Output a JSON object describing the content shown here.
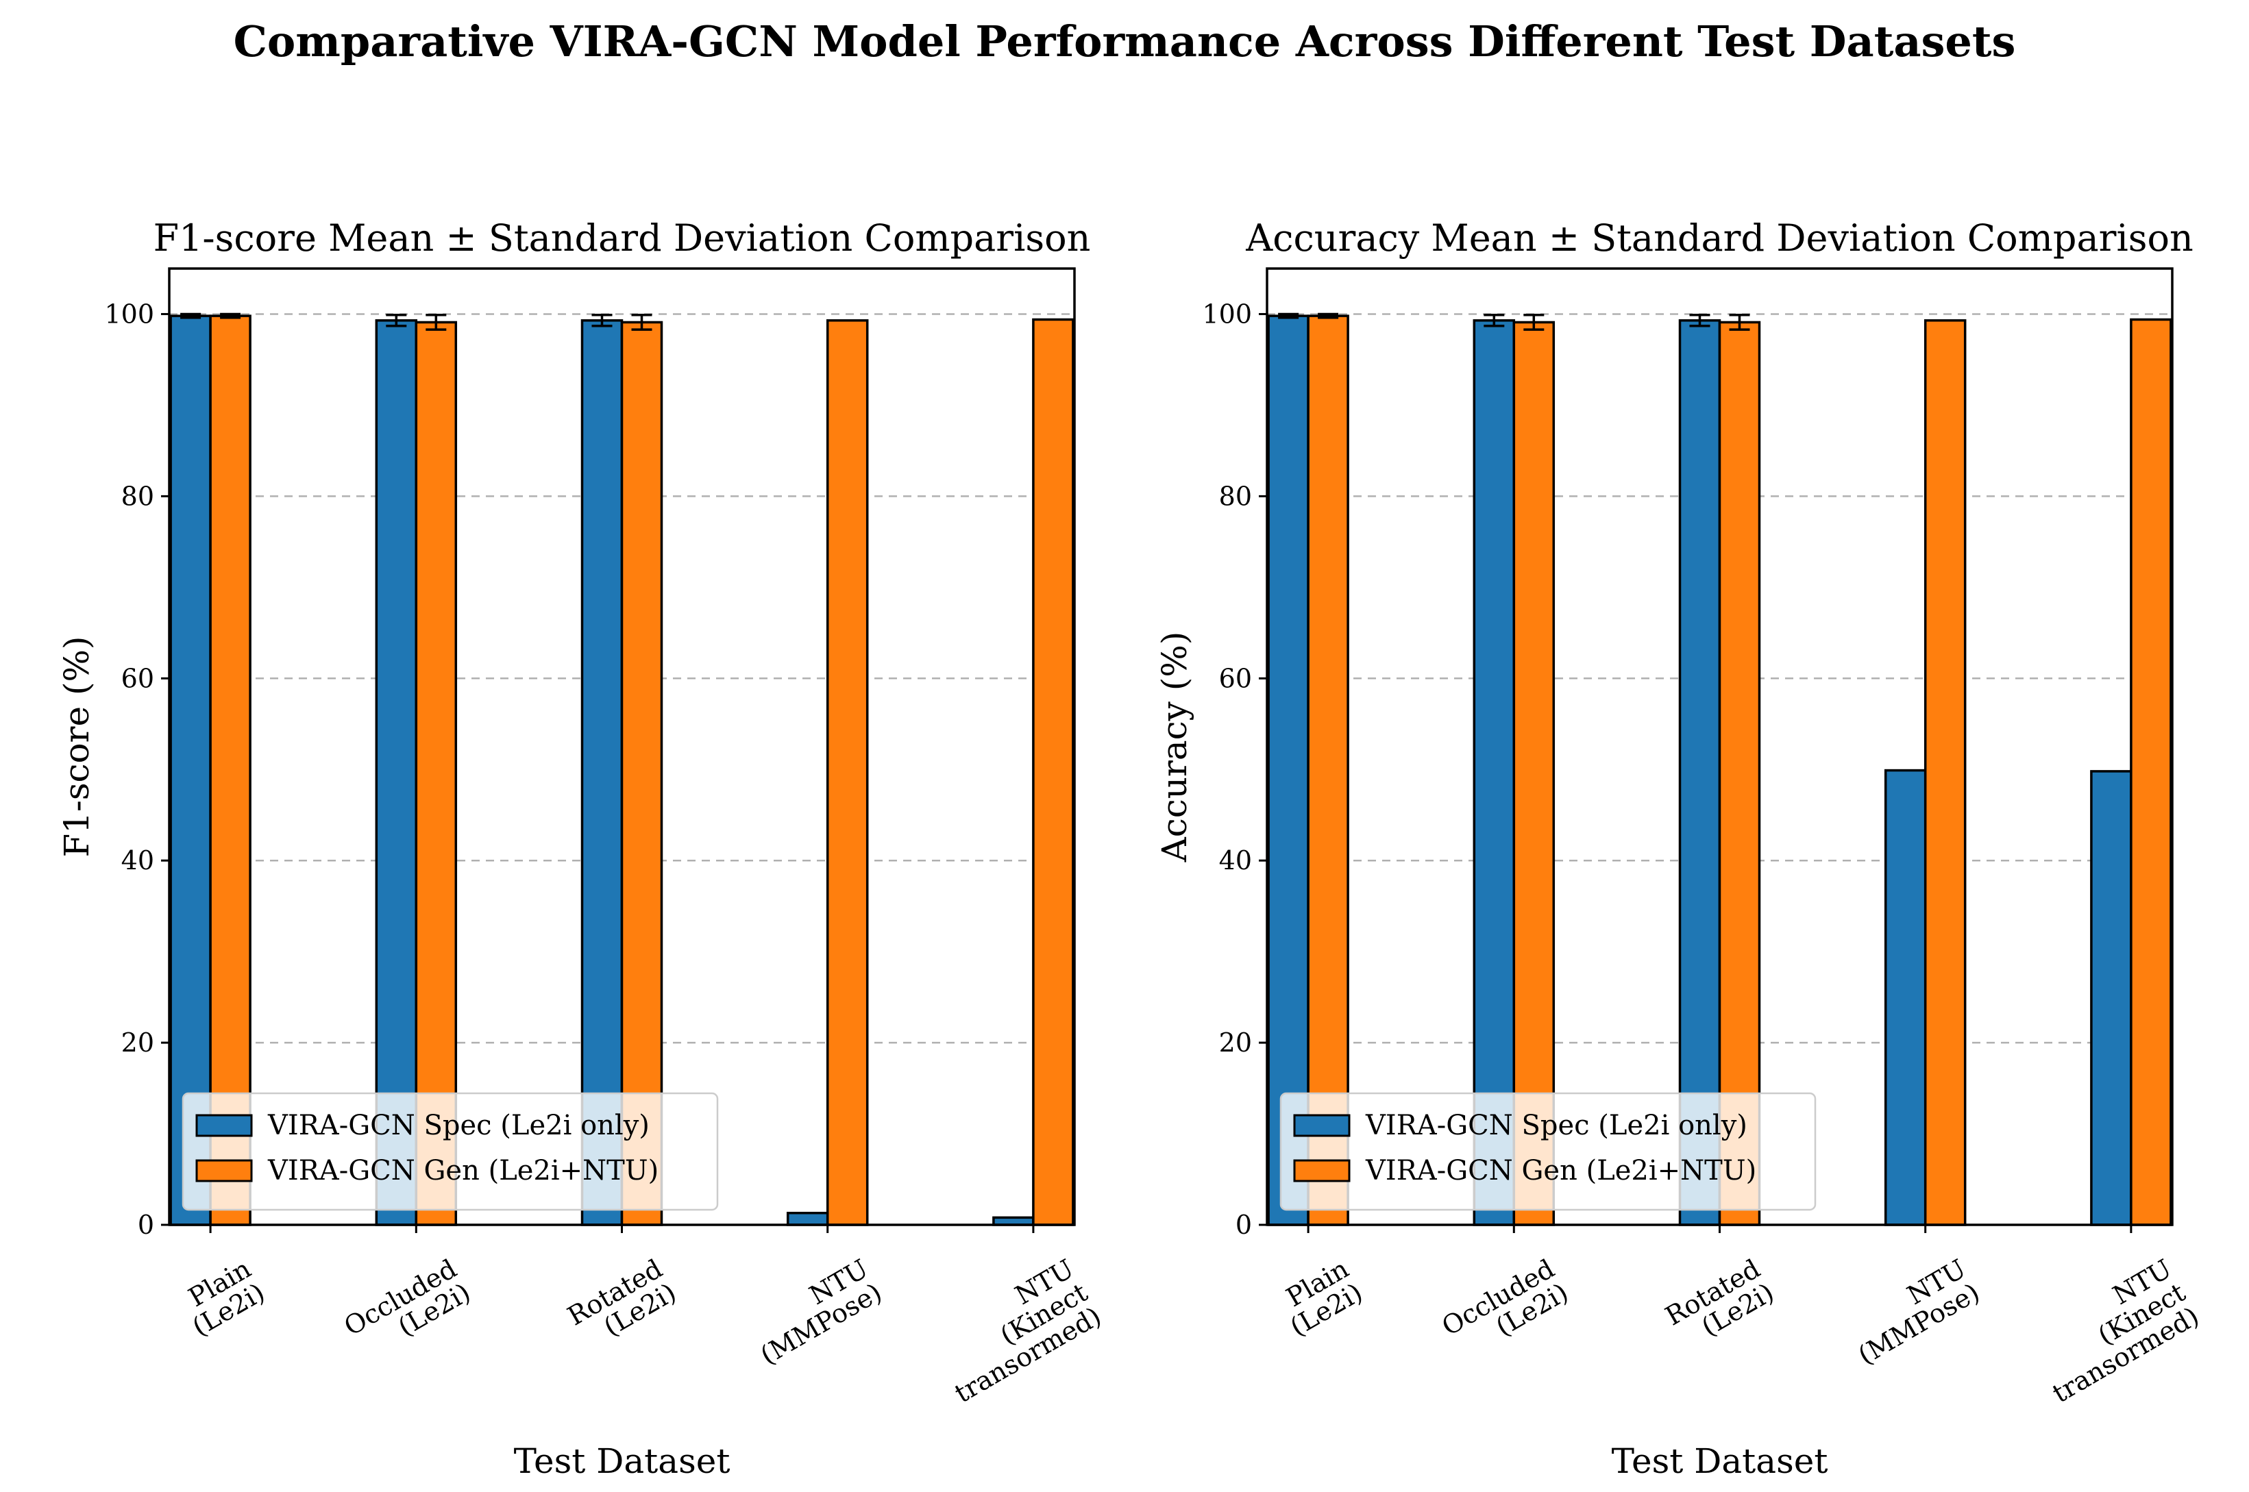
{
  "figure": {
    "suptitle": "Comparative VIRA-GCN Model Performance Across Different Test Datasets"
  },
  "colors": {
    "spec": "#1f77b4",
    "gen": "#ff7f0e",
    "grid": "#b0b0b0",
    "edge": "#000000"
  },
  "chart_data": [
    {
      "type": "bar",
      "title": "F1-score Mean ± Standard Deviation Comparison",
      "xlabel": "Test Dataset",
      "ylabel": "F1-score (%)",
      "ylim": [
        0,
        105
      ],
      "yticks": [
        0,
        20,
        40,
        60,
        80,
        100
      ],
      "ytick_labels": [
        "0",
        "20",
        "40",
        "60",
        "80",
        "100"
      ],
      "grid": "y dashed",
      "legend_position": "lower-left",
      "categories": [
        [
          "Plain",
          "(Le2i)"
        ],
        [
          "Occluded",
          "(Le2i)"
        ],
        [
          "Rotated",
          "(Le2i)"
        ],
        [
          "NTU",
          "(MMPose)"
        ],
        [
          "NTU",
          "(Kinect",
          "transormed)"
        ]
      ],
      "series": [
        {
          "name": "VIRA-GCN Spec (Le2i only)",
          "color_key": "spec",
          "values": [
            99.8,
            99.3,
            99.3,
            1.3,
            0.8
          ],
          "errors": [
            0.2,
            0.6,
            0.6,
            0,
            0
          ]
        },
        {
          "name": "VIRA-GCN Gen (Le2i+NTU)",
          "color_key": "gen",
          "values": [
            99.8,
            99.1,
            99.1,
            99.3,
            99.4
          ],
          "errors": [
            0.2,
            0.8,
            0.8,
            0,
            0
          ]
        }
      ]
    },
    {
      "type": "bar",
      "title": "Accuracy Mean ± Standard Deviation Comparison",
      "xlabel": "Test Dataset",
      "ylabel": "Accuracy (%)",
      "ylim": [
        0,
        105
      ],
      "yticks": [
        0,
        20,
        40,
        60,
        80,
        100
      ],
      "ytick_labels": [
        "0",
        "20",
        "40",
        "60",
        "80",
        "100"
      ],
      "grid": "y dashed",
      "legend_position": "lower-left",
      "categories": [
        [
          "Plain",
          "(Le2i)"
        ],
        [
          "Occluded",
          "(Le2i)"
        ],
        [
          "Rotated",
          "(Le2i)"
        ],
        [
          "NTU",
          "(MMPose)"
        ],
        [
          "NTU",
          "(Kinect",
          "transormed)"
        ]
      ],
      "series": [
        {
          "name": "VIRA-GCN Spec (Le2i only)",
          "color_key": "spec",
          "values": [
            99.8,
            99.3,
            99.3,
            49.9,
            49.8
          ],
          "errors": [
            0.2,
            0.6,
            0.6,
            0,
            0
          ]
        },
        {
          "name": "VIRA-GCN Gen (Le2i+NTU)",
          "color_key": "gen",
          "values": [
            99.8,
            99.1,
            99.1,
            99.3,
            99.4
          ],
          "errors": [
            0.2,
            0.8,
            0.8,
            0,
            0
          ]
        }
      ]
    }
  ]
}
